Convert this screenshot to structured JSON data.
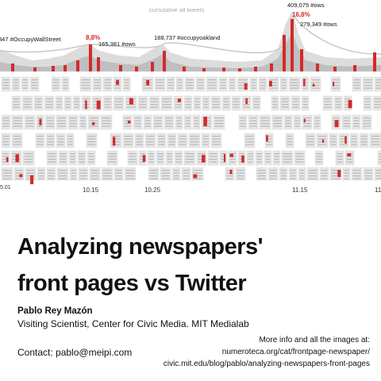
{
  "timeline": {
    "header": "cumulative all tweets",
    "annotations": [
      {
        "text": "847 #OccupyWallStreet",
        "color": "#111111"
      },
      {
        "text": "8,8%",
        "color": "#d42a2a"
      },
      {
        "text": "165,381 #ows",
        "color": "#111111"
      },
      {
        "text": "188,737 #occupyoakland",
        "color": "#111111"
      },
      {
        "text": "409,075 #ows",
        "color": "#111111"
      },
      {
        "text": "16,8%",
        "color": "#d42a2a"
      },
      {
        "text": "279,349 #ows",
        "color": "#111111"
      }
    ],
    "date_labels": [
      "5.01",
      "10.15",
      "10.25",
      "11.15",
      "11"
    ],
    "colors": {
      "accent": "#d42a2a",
      "area": "#bfbfbf",
      "thumb": "#e6e6e6"
    }
  },
  "poster": {
    "title_line1": "Analyzing newspapers'",
    "title_line2": "front pages vs Twitter",
    "author": "Pablo Rey Mazón",
    "affiliation": "Visiting Scientist, Center for Civic Media. MIT Medialab",
    "contact": "Contact: pablo@meipi.com",
    "more_info": "More info and all the images at:",
    "link1": "numeroteca.org/cat/frontpage-newspaper/",
    "link2": "civic.mit.edu/blog/pablo/analyzing-newspapers-front-pages"
  }
}
